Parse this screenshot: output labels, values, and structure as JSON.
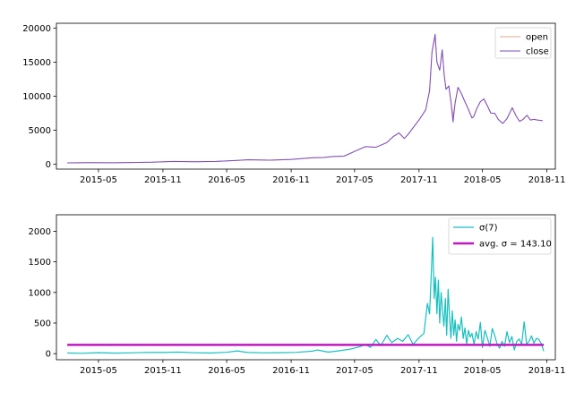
{
  "chart_data": [
    {
      "type": "line",
      "x_type": "date",
      "xlim": [
        "2015-01-01",
        "2018-11-25"
      ],
      "ylim": [
        -700,
        20700
      ],
      "x_ticks": [
        "2015-05-01",
        "2015-11-01",
        "2016-05-01",
        "2016-11-01",
        "2017-05-01",
        "2017-11-01",
        "2018-05-01",
        "2018-11-01"
      ],
      "x_tick_labels": [
        "2015-05",
        "2015-11",
        "2016-05",
        "2016-11",
        "2017-05",
        "2017-11",
        "2018-05",
        "2018-11"
      ],
      "y_ticks": [
        0,
        5000,
        10000,
        15000,
        20000
      ],
      "y_tick_labels": [
        "0",
        "5000",
        "10000",
        "15000",
        "20000"
      ],
      "legend_position": "top-right",
      "series": [
        {
          "name": "open",
          "color": "#e0a98f",
          "x": [
            "2015-02-01",
            "2015-04-01",
            "2015-06-01",
            "2015-08-01",
            "2015-10-01",
            "2015-12-01",
            "2016-02-01",
            "2016-04-01",
            "2016-06-01",
            "2016-07-01",
            "2016-09-01",
            "2016-11-01",
            "2017-01-01",
            "2017-02-01",
            "2017-03-01",
            "2017-04-01",
            "2017-05-01",
            "2017-06-01",
            "2017-07-01",
            "2017-08-01",
            "2017-08-20",
            "2017-09-05",
            "2017-09-20",
            "2017-10-01",
            "2017-10-20",
            "2017-11-01",
            "2017-11-20",
            "2017-12-01",
            "2017-12-08",
            "2017-12-17",
            "2017-12-22",
            "2017-12-30",
            "2018-01-06",
            "2018-01-12",
            "2018-01-17",
            "2018-01-25",
            "2018-02-01",
            "2018-02-06",
            "2018-02-12",
            "2018-02-20",
            "2018-03-01",
            "2018-03-10",
            "2018-03-20",
            "2018-04-01",
            "2018-04-06",
            "2018-04-15",
            "2018-04-25",
            "2018-05-05",
            "2018-05-15",
            "2018-05-25",
            "2018-06-05",
            "2018-06-15",
            "2018-06-28",
            "2018-07-10",
            "2018-07-25",
            "2018-08-05",
            "2018-08-15",
            "2018-08-25",
            "2018-09-05",
            "2018-09-15",
            "2018-09-25",
            "2018-10-05",
            "2018-10-20"
          ],
          "values": [
            220,
            250,
            230,
            270,
            310,
            420,
            380,
            430,
            580,
            670,
            610,
            720,
            960,
            1000,
            1150,
            1200,
            1900,
            2600,
            2500,
            3200,
            4100,
            4600,
            3800,
            4400,
            5700,
            6500,
            8000,
            10800,
            16500,
            18800,
            15000,
            13800,
            16800,
            13000,
            11000,
            11500,
            8800,
            7000,
            9000,
            11300,
            10500,
            9400,
            8300,
            6800,
            7000,
            8200,
            9200,
            9600,
            8600,
            7500,
            7500,
            6600,
            6000,
            6700,
            8300,
            7100,
            6300,
            6600,
            7200,
            6500,
            6600,
            6500,
            6400
          ]
        },
        {
          "name": "close",
          "color": "#7b4bc1",
          "x": [
            "2015-02-01",
            "2015-04-01",
            "2015-06-01",
            "2015-08-01",
            "2015-10-01",
            "2015-12-01",
            "2016-02-01",
            "2016-04-01",
            "2016-06-01",
            "2016-07-01",
            "2016-09-01",
            "2016-11-01",
            "2017-01-01",
            "2017-02-01",
            "2017-03-01",
            "2017-04-01",
            "2017-05-01",
            "2017-06-01",
            "2017-07-01",
            "2017-08-01",
            "2017-08-20",
            "2017-09-05",
            "2017-09-20",
            "2017-10-01",
            "2017-10-20",
            "2017-11-01",
            "2017-11-20",
            "2017-12-01",
            "2017-12-08",
            "2017-12-17",
            "2017-12-22",
            "2017-12-30",
            "2018-01-06",
            "2018-01-12",
            "2018-01-17",
            "2018-01-25",
            "2018-02-01",
            "2018-02-06",
            "2018-02-12",
            "2018-02-20",
            "2018-03-01",
            "2018-03-10",
            "2018-03-20",
            "2018-04-01",
            "2018-04-06",
            "2018-04-15",
            "2018-04-25",
            "2018-05-05",
            "2018-05-15",
            "2018-05-25",
            "2018-06-05",
            "2018-06-15",
            "2018-06-28",
            "2018-07-10",
            "2018-07-25",
            "2018-08-05",
            "2018-08-15",
            "2018-08-25",
            "2018-09-05",
            "2018-09-15",
            "2018-09-25",
            "2018-10-05",
            "2018-10-20"
          ],
          "values": [
            225,
            252,
            232,
            272,
            312,
            425,
            382,
            432,
            585,
            672,
            612,
            725,
            965,
            1005,
            1155,
            1205,
            1905,
            2605,
            2505,
            3205,
            4105,
            4605,
            3805,
            4405,
            5705,
            6505,
            8005,
            10805,
            16505,
            19100,
            15005,
            13805,
            16805,
            13005,
            11005,
            11505,
            8805,
            6200,
            9005,
            11305,
            10505,
            9405,
            8305,
            6805,
            7005,
            8205,
            9205,
            9605,
            8605,
            7505,
            7505,
            6605,
            6005,
            6705,
            8305,
            7105,
            6305,
            6605,
            7205,
            6505,
            6605,
            6505,
            6405
          ]
        }
      ]
    },
    {
      "type": "line",
      "x_type": "date",
      "xlim": [
        "2015-01-01",
        "2018-11-25"
      ],
      "ylim": [
        -100,
        2270
      ],
      "x_ticks": [
        "2015-05-01",
        "2015-11-01",
        "2016-05-01",
        "2016-11-01",
        "2017-05-01",
        "2017-11-01",
        "2018-05-01",
        "2018-11-01"
      ],
      "x_tick_labels": [
        "2015-05",
        "2015-11",
        "2016-05",
        "2016-11",
        "2017-05",
        "2017-11",
        "2018-05",
        "2018-11"
      ],
      "y_ticks": [
        0,
        500,
        1000,
        1500,
        2000
      ],
      "y_tick_labels": [
        "0",
        "500",
        "1000",
        "1500",
        "2000"
      ],
      "legend_position": "top-right",
      "series": [
        {
          "name": "σ(7)",
          "color": "#17bfbf",
          "x": [
            "2015-02-01",
            "2015-03-15",
            "2015-05-01",
            "2015-06-15",
            "2015-08-01",
            "2015-09-15",
            "2015-11-01",
            "2015-12-15",
            "2016-02-01",
            "2016-03-15",
            "2016-05-01",
            "2016-06-01",
            "2016-06-15",
            "2016-07-01",
            "2016-08-15",
            "2016-10-01",
            "2016-11-15",
            "2017-01-01",
            "2017-01-15",
            "2017-02-15",
            "2017-03-15",
            "2017-04-15",
            "2017-05-15",
            "2017-06-01",
            "2017-06-15",
            "2017-07-01",
            "2017-07-15",
            "2017-08-01",
            "2017-08-15",
            "2017-09-01",
            "2017-09-15",
            "2017-10-01",
            "2017-10-15",
            "2017-11-01",
            "2017-11-15",
            "2017-11-25",
            "2017-12-01",
            "2017-12-06",
            "2017-12-10",
            "2017-12-14",
            "2017-12-18",
            "2017-12-22",
            "2017-12-26",
            "2017-12-30",
            "2018-01-03",
            "2018-01-07",
            "2018-01-11",
            "2018-01-15",
            "2018-01-19",
            "2018-01-23",
            "2018-01-27",
            "2018-01-31",
            "2018-02-04",
            "2018-02-08",
            "2018-02-12",
            "2018-02-16",
            "2018-02-20",
            "2018-02-25",
            "2018-03-02",
            "2018-03-07",
            "2018-03-12",
            "2018-03-17",
            "2018-03-22",
            "2018-03-27",
            "2018-04-01",
            "2018-04-07",
            "2018-04-13",
            "2018-04-19",
            "2018-04-25",
            "2018-05-01",
            "2018-05-08",
            "2018-05-15",
            "2018-05-22",
            "2018-05-29",
            "2018-06-05",
            "2018-06-12",
            "2018-06-19",
            "2018-06-26",
            "2018-07-03",
            "2018-07-10",
            "2018-07-17",
            "2018-07-24",
            "2018-07-31",
            "2018-08-07",
            "2018-08-14",
            "2018-08-21",
            "2018-08-28",
            "2018-09-04",
            "2018-09-11",
            "2018-09-18",
            "2018-09-25",
            "2018-10-02",
            "2018-10-09",
            "2018-10-16",
            "2018-10-23"
          ],
          "values": [
            10,
            5,
            15,
            8,
            12,
            20,
            18,
            25,
            14,
            10,
            22,
            45,
            30,
            18,
            12,
            15,
            20,
            40,
            60,
            25,
            45,
            70,
            110,
            150,
            100,
            230,
            130,
            300,
            180,
            250,
            200,
            310,
            150,
            260,
            330,
            820,
            650,
            1300,
            1900,
            900,
            1250,
            650,
            1200,
            500,
            1000,
            700,
            450,
            900,
            300,
            1050,
            600,
            250,
            700,
            300,
            550,
            200,
            480,
            380,
            600,
            250,
            420,
            150,
            380,
            270,
            330,
            150,
            360,
            240,
            510,
            100,
            380,
            260,
            120,
            410,
            300,
            150,
            90,
            200,
            120,
            360,
            180,
            280,
            60,
            200,
            240,
            150,
            520,
            160,
            200,
            290,
            170,
            250,
            230,
            160,
            40
          ]
        },
        {
          "name": "avg. σ = 143.10",
          "color": "#bf17bf",
          "x": [
            "2015-02-01",
            "2018-10-23"
          ],
          "values": [
            143.1,
            143.1
          ]
        }
      ]
    }
  ]
}
